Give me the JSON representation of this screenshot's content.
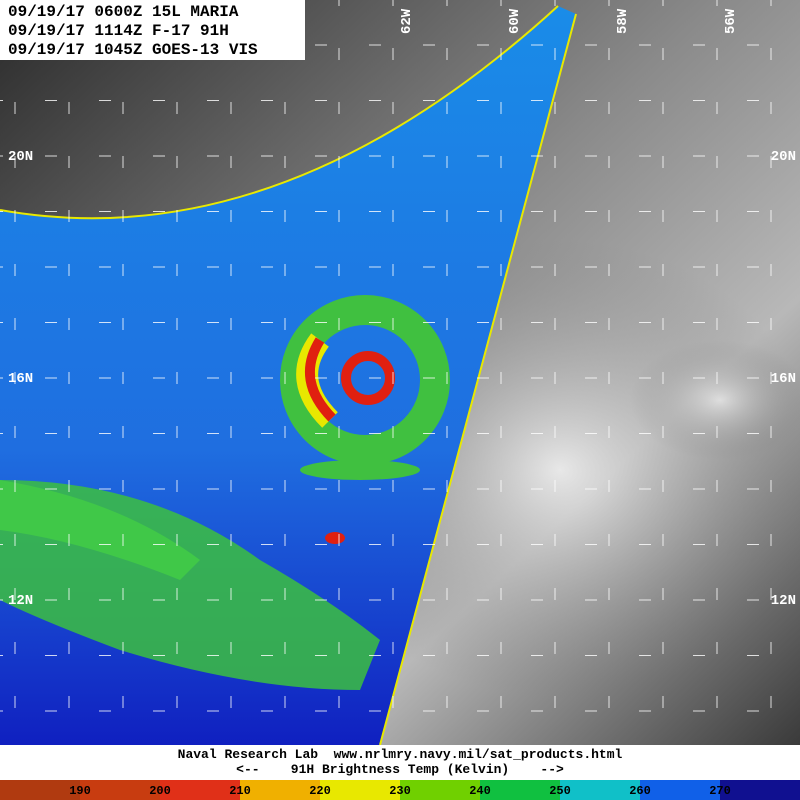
{
  "header": {
    "lines": [
      "09/19/17 0600Z 15L MARIA",
      "09/19/17 1114Z F-17 91H",
      "09/19/17 1045Z GOES-13 VIS"
    ]
  },
  "map": {
    "longitude_labels": [
      "62W",
      "60W",
      "58W",
      "56W"
    ],
    "latitude_labels": [
      "20N",
      "16N",
      "12N"
    ]
  },
  "footer": {
    "source": "Naval Research Lab  www.nrlmry.navy.mil/sat_products.html",
    "legend_title": "<--    91H Brightness Temp (Kelvin)    -->"
  },
  "color_bar": {
    "labels": [
      190,
      200,
      210,
      220,
      230,
      240,
      250,
      260,
      270
    ],
    "colors": [
      "#b03a10",
      "#c83c10",
      "#e03018",
      "#f0b000",
      "#e8e800",
      "#70d000",
      "#10c040",
      "#10c0c8",
      "#1060e8",
      "#101090"
    ]
  }
}
